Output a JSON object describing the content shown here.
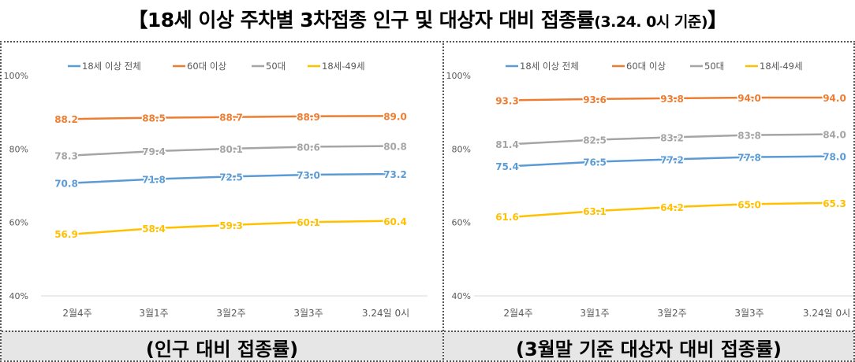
{
  "header": {
    "title_main": "【18세 이상 주차별 3차접종 인구 및 대상자 대비 접종률",
    "title_date": "(3.24. 0시 기준)",
    "title_close": "】"
  },
  "panels": [
    {
      "caption": "(인구 대비 접종률)"
    },
    {
      "caption": "(3월말 기준 대상자 대비 접종률)"
    }
  ],
  "colors": {
    "all18": "#5b9bd5",
    "over60": "#ed7d31",
    "fifties": "#a5a5a5",
    "age18_49": "#ffc000",
    "axis_text": "#595959",
    "gridline": "#d9d9d9"
  },
  "chart_data": [
    {
      "type": "line",
      "categories": [
        "2월4주",
        "3월1주",
        "3월2주",
        "3월3주",
        "3.24일 0시"
      ],
      "y_ticks": [
        "40%",
        "60%",
        "80%",
        "100%"
      ],
      "ylim": [
        40,
        100
      ],
      "grid": false,
      "legend_position": "top",
      "series": [
        {
          "name": "18세 이상 전체",
          "color": "#5b9bd5",
          "values": [
            70.8,
            71.8,
            72.5,
            73.0,
            73.2
          ],
          "labels": [
            "70.8",
            "71.8",
            "72.5",
            "73.0",
            "73.2"
          ]
        },
        {
          "name": "60대 이상",
          "color": "#ed7d31",
          "values": [
            88.2,
            88.5,
            88.7,
            88.9,
            89.0
          ],
          "labels": [
            "88.2",
            "88.5",
            "88.7",
            "88.9",
            "89.0"
          ]
        },
        {
          "name": "50대",
          "color": "#a5a5a5",
          "values": [
            78.3,
            79.4,
            80.1,
            80.6,
            80.8
          ],
          "labels": [
            "78.3",
            "79.4",
            "80.1",
            "80.6",
            "80.8"
          ]
        },
        {
          "name": "18세-49세",
          "color": "#ffc000",
          "values": [
            56.9,
            58.4,
            59.3,
            60.1,
            60.4
          ],
          "labels": [
            "56.9",
            "58.4",
            "59.3",
            "60.1",
            "60.4"
          ]
        }
      ]
    },
    {
      "type": "line",
      "categories": [
        "2월4주",
        "3월1주",
        "3월2주",
        "3월3주",
        "3.24일 0시"
      ],
      "y_ticks": [
        "40%",
        "60%",
        "80%",
        "100%"
      ],
      "ylim": [
        40,
        100
      ],
      "grid": false,
      "legend_position": "top",
      "series": [
        {
          "name": "18세 이상 전체",
          "color": "#5b9bd5",
          "values": [
            75.4,
            76.5,
            77.2,
            77.8,
            78.0
          ],
          "labels": [
            "75.4",
            "76.5",
            "77.2",
            "77.8",
            "78.0"
          ]
        },
        {
          "name": "60대 이상",
          "color": "#ed7d31",
          "values": [
            93.3,
            93.6,
            93.8,
            94.0,
            94.0
          ],
          "labels": [
            "93.3",
            "93.6",
            "93.8",
            "94.0",
            "94.0"
          ]
        },
        {
          "name": "50대",
          "color": "#a5a5a5",
          "values": [
            81.4,
            82.5,
            83.2,
            83.8,
            84.0
          ],
          "labels": [
            "81.4",
            "82.5",
            "83.2",
            "83.8",
            "84.0"
          ]
        },
        {
          "name": "18세-49세",
          "color": "#ffc000",
          "values": [
            61.6,
            63.1,
            64.2,
            65.0,
            65.3
          ],
          "labels": [
            "61.6",
            "63.1",
            "64.2",
            "65.0",
            "65.3"
          ]
        }
      ]
    }
  ]
}
